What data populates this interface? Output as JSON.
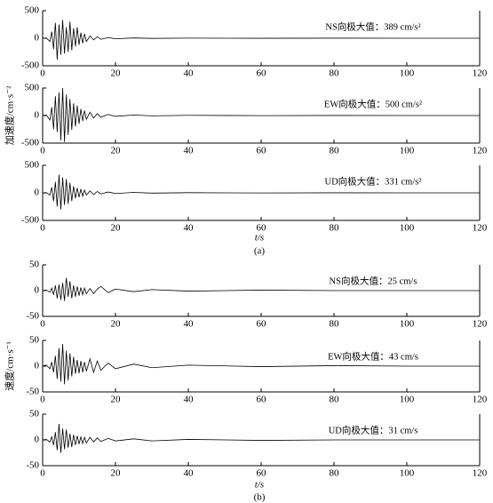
{
  "chart_data": [
    {
      "type": "line",
      "annotation": "NS向极大值：389 cm/s²",
      "color": "#000000",
      "x": [
        0,
        1,
        2,
        2.5,
        3,
        3.5,
        4,
        4.5,
        5,
        5.5,
        6,
        6.5,
        7,
        7.5,
        8,
        8.5,
        9,
        9.5,
        10,
        10.5,
        11,
        11.5,
        12,
        13,
        14,
        15,
        16,
        18,
        20,
        25,
        30,
        40,
        60,
        80,
        100,
        120
      ],
      "values": [
        0,
        5,
        -60,
        120,
        -200,
        280,
        -389,
        250,
        -300,
        330,
        -280,
        200,
        -250,
        300,
        -220,
        180,
        -150,
        200,
        -120,
        100,
        -90,
        80,
        -60,
        40,
        -30,
        25,
        -20,
        12,
        -10,
        5,
        -3,
        2,
        -1,
        1,
        0,
        0
      ],
      "xlim": [
        0,
        120
      ],
      "xticks": [
        0,
        20,
        40,
        60,
        80,
        100,
        120
      ],
      "ylim": [
        -500,
        500
      ],
      "yticks": [
        -500,
        0,
        500
      ]
    },
    {
      "type": "line",
      "annotation": "EW向极大值：500 cm/s²",
      "color": "#000000",
      "x": [
        0,
        1,
        2,
        2.5,
        3,
        3.5,
        4,
        4.5,
        5,
        5.5,
        6,
        6.5,
        7,
        7.5,
        8,
        8.5,
        9,
        9.5,
        10,
        10.5,
        11,
        11.5,
        12,
        13,
        14,
        15,
        16,
        18,
        20,
        25,
        30,
        40,
        60,
        80,
        100,
        120
      ],
      "values": [
        0,
        10,
        -80,
        150,
        -250,
        350,
        -300,
        420,
        -450,
        500,
        -480,
        380,
        -350,
        300,
        -260,
        220,
        -200,
        180,
        -150,
        120,
        -100,
        90,
        -70,
        60,
        -45,
        35,
        -30,
        20,
        -15,
        10,
        -6,
        4,
        -2,
        1,
        0,
        0
      ],
      "xlim": [
        0,
        120
      ],
      "xticks": [
        0,
        20,
        40,
        60,
        80,
        100,
        120
      ],
      "ylim": [
        -500,
        500
      ],
      "yticks": [
        -500,
        0,
        500
      ]
    },
    {
      "type": "line",
      "annotation": "UD向极大值：331 cm/s²",
      "color": "#000000",
      "x": [
        0,
        1,
        2,
        2.5,
        3,
        3.5,
        4,
        4.5,
        5,
        5.5,
        6,
        6.5,
        7,
        7.5,
        8,
        8.5,
        9,
        9.5,
        10,
        10.5,
        11,
        11.5,
        12,
        13,
        14,
        15,
        16,
        18,
        20,
        25,
        30,
        40,
        60,
        80,
        100,
        120
      ],
      "values": [
        0,
        5,
        -40,
        100,
        -150,
        200,
        -250,
        331,
        -300,
        280,
        -220,
        250,
        -200,
        180,
        -150,
        120,
        -100,
        90,
        -80,
        70,
        -60,
        50,
        -40,
        35,
        -30,
        25,
        -20,
        15,
        -12,
        8,
        -5,
        3,
        -2,
        1,
        0,
        0
      ],
      "xlim": [
        0,
        120
      ],
      "xticks": [
        0,
        20,
        40,
        60,
        80,
        100,
        120
      ],
      "ylim": [
        -500,
        500
      ],
      "yticks": [
        -500,
        0,
        500
      ]
    },
    {
      "type": "line",
      "annotation": "NS向极大值：25 cm/s",
      "color": "#000000",
      "x": [
        0,
        1,
        2,
        2.5,
        3,
        3.5,
        4,
        4.5,
        5,
        5.5,
        6,
        6.5,
        7,
        7.5,
        8,
        8.5,
        9,
        9.5,
        10,
        10.5,
        11,
        11.5,
        12,
        13,
        14,
        15,
        16,
        18,
        20,
        25,
        30,
        40,
        60,
        80,
        100,
        120
      ],
      "values": [
        0,
        1,
        -3,
        5,
        -8,
        10,
        -15,
        12,
        -18,
        15,
        -20,
        25,
        -12,
        18,
        -15,
        10,
        -12,
        8,
        -10,
        6,
        -8,
        5,
        -6,
        4,
        -6,
        3,
        8,
        -4,
        3,
        -2,
        2,
        -1,
        1,
        0,
        0,
        0
      ],
      "xlim": [
        0,
        120
      ],
      "xticks": [
        0,
        20,
        40,
        60,
        80,
        100,
        120
      ],
      "ylim": [
        -50,
        50
      ],
      "yticks": [
        -50,
        0,
        50
      ]
    },
    {
      "type": "line",
      "annotation": "EW向极大值：43 cm/s",
      "color": "#000000",
      "x": [
        0,
        1,
        2,
        2.5,
        3,
        3.5,
        4,
        4.5,
        5,
        5.5,
        6,
        6.5,
        7,
        7.5,
        8,
        8.5,
        9,
        9.5,
        10,
        10.5,
        11,
        11.5,
        12,
        13,
        14,
        15,
        16,
        18,
        20,
        25,
        30,
        40,
        60,
        80,
        100,
        120
      ],
      "values": [
        0,
        2,
        -5,
        8,
        -12,
        20,
        -25,
        35,
        -30,
        43,
        -35,
        30,
        -28,
        25,
        -20,
        18,
        -15,
        12,
        -14,
        10,
        -12,
        8,
        -10,
        14,
        -12,
        10,
        -8,
        6,
        -5,
        4,
        -3,
        2,
        -1,
        1,
        0,
        0
      ],
      "xlim": [
        0,
        120
      ],
      "xticks": [
        0,
        20,
        40,
        60,
        80,
        100,
        120
      ],
      "ylim": [
        -50,
        50
      ],
      "yticks": [
        -50,
        0,
        50
      ]
    },
    {
      "type": "line",
      "annotation": "UD向极大值：31 cm/s",
      "color": "#000000",
      "x": [
        0,
        1,
        2,
        2.5,
        3,
        3.5,
        4,
        4.5,
        5,
        5.5,
        6,
        6.5,
        7,
        7.5,
        8,
        8.5,
        9,
        9.5,
        10,
        10.5,
        11,
        11.5,
        12,
        13,
        14,
        15,
        16,
        18,
        20,
        25,
        30,
        40,
        60,
        80,
        100,
        120
      ],
      "values": [
        0,
        1,
        -4,
        6,
        -10,
        15,
        -20,
        31,
        -25,
        22,
        -18,
        20,
        -15,
        12,
        -14,
        10,
        -10,
        8,
        -8,
        6,
        -7,
        5,
        -6,
        5,
        -4,
        4,
        -3,
        3,
        -2,
        2,
        -2,
        1,
        -1,
        0,
        0,
        0
      ],
      "xlim": [
        0,
        120
      ],
      "xticks": [
        0,
        20,
        40,
        60,
        80,
        100,
        120
      ],
      "ylim": [
        -50,
        50
      ],
      "yticks": [
        -50,
        0,
        50
      ]
    }
  ],
  "panels": [
    {
      "ylabel": "加速度/cm·s⁻²",
      "xlabel": "t/s",
      "caption": "(a)"
    },
    {
      "ylabel": "速度/cm·s⁻¹",
      "xlabel": "t/s",
      "caption": "(b)"
    }
  ]
}
